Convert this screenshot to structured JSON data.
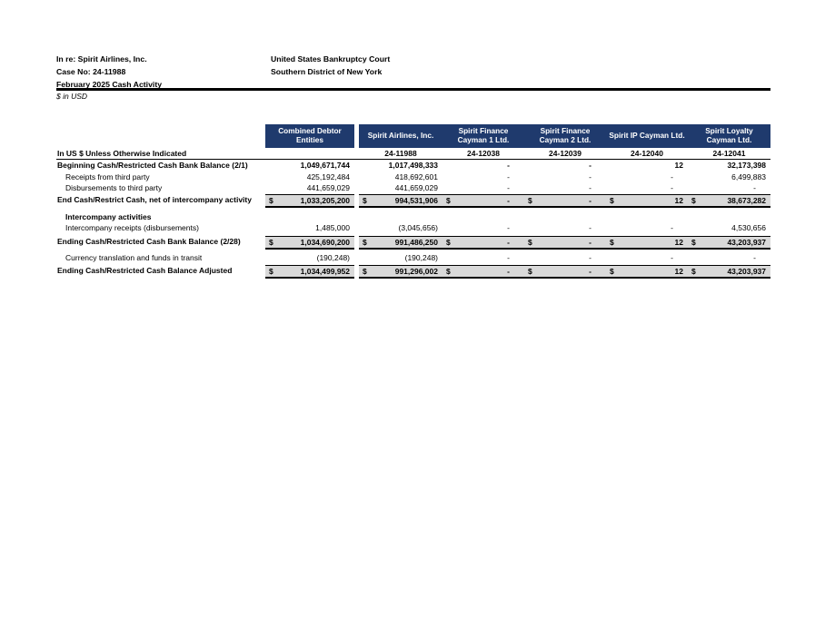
{
  "doc_header": {
    "case_caption_line1": "In re: Spirit Airlines, Inc.",
    "case_caption_line2": "Case No: 24-11988",
    "case_caption_line3": "February 2025 Cash Activity",
    "court_line1": "United States Bankruptcy Court",
    "court_line2": "Southern District of New York",
    "units_note": "$ in USD"
  },
  "colors": {
    "header_bg": "#1f3a6d",
    "header_text": "#ffffff",
    "total_row_bg": "#d9d9d9"
  },
  "table": {
    "currency_symbol": "$",
    "row_header_label": "In US $ Unless Otherwise Indicated",
    "columns": [
      {
        "label": "Combined Debtor Entities",
        "case_no": ""
      },
      {
        "label": "Spirit Airlines, Inc.",
        "case_no": "24-11988"
      },
      {
        "label": "Spirit Finance Cayman 1 Ltd.",
        "case_no": "24-12038"
      },
      {
        "label": "Spirit Finance Cayman 2 Ltd.",
        "case_no": "24-12039"
      },
      {
        "label": "Spirit IP Cayman Ltd.",
        "case_no": "24-12040"
      },
      {
        "label": "Spirit Loyalty Cayman Ltd.",
        "case_no": "24-12041"
      }
    ],
    "rows": [
      {
        "label": "Beginning Cash/Restricted Cash Bank Balance (2/1)",
        "type": "bold-item",
        "spacer_before": 0,
        "values": [
          "1,049,671,744",
          "1,017,498,333",
          "-",
          "-",
          "12",
          "32,173,398"
        ]
      },
      {
        "label": "Receipts from third party",
        "type": "item",
        "spacer_before": 0,
        "values": [
          "425,192,484",
          "418,692,601",
          "-",
          "-",
          "-",
          "6,499,883"
        ]
      },
      {
        "label": "Disbursements to third party",
        "type": "item",
        "spacer_before": 0,
        "values": [
          "441,659,029",
          "441,659,029",
          "-",
          "-",
          "-",
          "-"
        ]
      },
      {
        "label": "End Cash/Restrict Cash, net of intercompany activity",
        "type": "total",
        "spacer_before": 0,
        "values": [
          "1,033,205,200",
          "994,531,906",
          "-",
          "-",
          "12",
          "38,673,282"
        ]
      },
      {
        "label": "Intercompany activities",
        "type": "section",
        "spacer_before": 4,
        "values": [
          "",
          "",
          "",
          "",
          "",
          ""
        ]
      },
      {
        "label": "Intercompany receipts (disbursements)",
        "type": "item",
        "spacer_before": 0,
        "values": [
          "1,485,000",
          "(3,045,656)",
          "-",
          "-",
          "-",
          "4,530,656"
        ]
      },
      {
        "label": "Ending Cash/Restricted Cash Bank Balance (2/28)",
        "type": "total",
        "spacer_before": 2,
        "values": [
          "1,034,690,200",
          "991,486,250",
          "-",
          "-",
          "12",
          "43,203,937"
        ]
      },
      {
        "label": "Currency translation and funds in transit",
        "type": "item",
        "spacer_before": 3,
        "values": [
          "(190,248)",
          "(190,248)",
          "-",
          "-",
          "-",
          "-"
        ]
      },
      {
        "label": "Ending Cash/Restricted Cash Balance Adjusted",
        "type": "total",
        "spacer_before": 2,
        "values": [
          "1,034,499,952",
          "991,296,002",
          "-",
          "-",
          "12",
          "43,203,937"
        ]
      }
    ]
  }
}
